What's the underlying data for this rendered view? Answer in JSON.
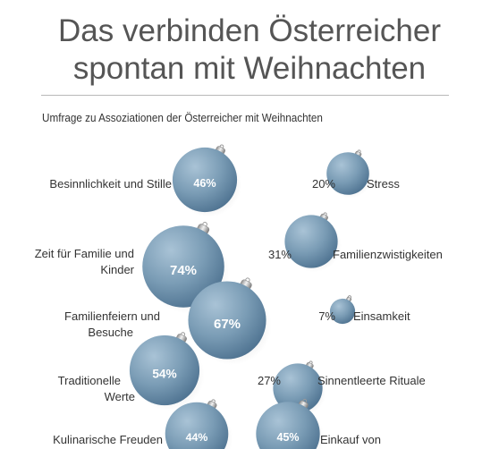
{
  "title_line1": "Das verbinden Österreicher",
  "title_line2": "spontan mit Weihnachten",
  "subtitle": "Umfrage zu Assoziationen der Österreicher mit Weihnachten",
  "colors": {
    "bauble": "#7a9cb5",
    "bauble_dark": "#4f7391",
    "bauble_light": "#a9c3d6",
    "cap": "#b8b8b8"
  },
  "chart_data": {
    "type": "bubble",
    "title": "Das verbinden Österreicher spontan mit Weihnachten",
    "subtitle": "Umfrage zu Assoziationen der Österreicher mit Weihnachten",
    "unit": "%",
    "series": [
      {
        "label": "Besinnlichkeit und Stille",
        "value": 46,
        "display": "46%"
      },
      {
        "label": "Stress",
        "value": 20,
        "display": "20%"
      },
      {
        "label": "Zeit für Familie und Kinder",
        "value": 74,
        "display": "74%"
      },
      {
        "label": "Familienzwistigkeiten",
        "value": 31,
        "display": "31%"
      },
      {
        "label": "Familienfeiern und Besuche",
        "value": 67,
        "display": "67%"
      },
      {
        "label": "Einsamkeit",
        "value": 7,
        "display": "7%"
      },
      {
        "label": "Traditionelle Werte",
        "value": 54,
        "display": "54%"
      },
      {
        "label": "Sinnentleerte Rituale",
        "value": 27,
        "display": "27%"
      },
      {
        "label": "Kulinarische Freuden",
        "value": 44,
        "display": "44%"
      },
      {
        "label": "Einkauf von",
        "value": 45,
        "display": "45%"
      }
    ]
  }
}
